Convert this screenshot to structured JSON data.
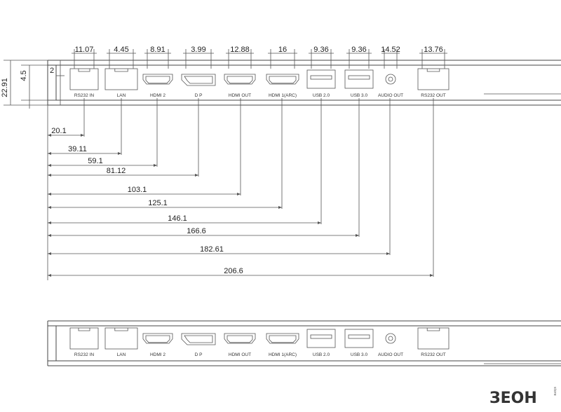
{
  "top_widths": [
    "11.07",
    "4.45",
    "8.91",
    "3.99",
    "12.88",
    "16",
    "9.36",
    "9.36",
    "14.52",
    "13.76"
  ],
  "side_dims": {
    "total_height": "22.91",
    "port_offset": "4.5",
    "lip": "2"
  },
  "ports": [
    "RS232 IN",
    "LAN",
    "HDMI 2",
    "D P",
    "HDMI OUT",
    "HDMI 1(ARC)",
    "USB 2.0",
    "USB 3.0",
    "AUDIO OUT",
    "RS232 OUT"
  ],
  "offsets": [
    "20.1",
    "39.11",
    "59.1",
    "81.12",
    "103.1",
    "125.1",
    "146.1",
    "166.6",
    "182.61",
    "206.6"
  ],
  "logo": {
    "text": "ЗЕОН",
    "tag": "store"
  }
}
